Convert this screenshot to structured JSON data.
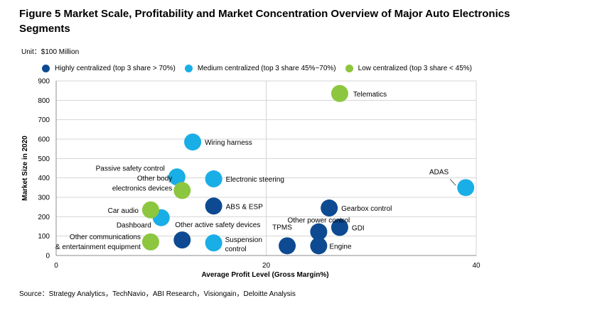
{
  "title": "Figure 5 Market Scale, Profitability and Market Concentration Overview of Major Auto Electronics Segments",
  "unit": "Unit：$100 Million",
  "source": "Source：Strategy Analytics，TechNavio，ABI Research，Visiongain，Deloitte Analysis",
  "chart_data": {
    "type": "scatter",
    "xlabel": "Average Profit Level (Gross Margin%)",
    "ylabel": "Market Size in 2020",
    "xlim": [
      0,
      40
    ],
    "ylim": [
      0,
      900
    ],
    "xticks": [
      0,
      20,
      40
    ],
    "yticks": [
      0,
      100,
      200,
      300,
      400,
      500,
      600,
      700,
      800,
      900
    ],
    "grid": true,
    "legend_position": "top",
    "series": [
      {
        "name": "Highly centralized (top 3 share > 70%)",
        "color": "#0d4a92",
        "points": [
          {
            "label": "ABS & ESP",
            "x": 15,
            "y": 255
          },
          {
            "label": "Gearbox control",
            "x": 26,
            "y": 245
          },
          {
            "label": "GDI",
            "x": 27,
            "y": 145
          },
          {
            "label": "Other power control",
            "x": 25,
            "y": 122
          },
          {
            "label": "Other active safety devices",
            "x": 12,
            "y": 80
          },
          {
            "label": "TPMS",
            "x": 22,
            "y": 50
          },
          {
            "label": "Engine",
            "x": 25,
            "y": 50
          }
        ]
      },
      {
        "name": "Medium centralized (top 3 share 45%~70%)",
        "color": "#1aaee6",
        "points": [
          {
            "label": "Wiring harness",
            "x": 13,
            "y": 585
          },
          {
            "label": "Passive safety control",
            "x": 11.5,
            "y": 405
          },
          {
            "label": "Electronic steering",
            "x": 15,
            "y": 395
          },
          {
            "label": "ADAS",
            "x": 39,
            "y": 350
          },
          {
            "label": "Dashboard",
            "x": 10,
            "y": 195
          },
          {
            "label": "Suspension control",
            "x": 15,
            "y": 65
          }
        ]
      },
      {
        "name": "Low centralized (top 3 share < 45%)",
        "color": "#8dc63f",
        "points": [
          {
            "label": "Telematics",
            "x": 27,
            "y": 835
          },
          {
            "label": "Other body electronics devices",
            "x": 12,
            "y": 335
          },
          {
            "label": "Car audio",
            "x": 9,
            "y": 235
          },
          {
            "label": "Other communications & entertainment equipment",
            "x": 9,
            "y": 70
          }
        ]
      }
    ]
  }
}
